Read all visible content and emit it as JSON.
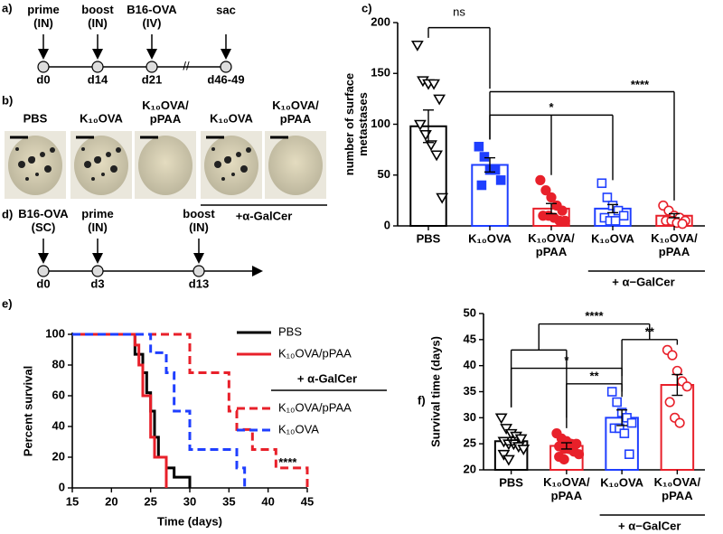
{
  "panels": {
    "a": {
      "label": "a)",
      "events": [
        "prime\n(IN)",
        "boost\n(IN)",
        "B16-OVA\n(IV)",
        "sac"
      ],
      "days": [
        "d0",
        "d14",
        "d21",
        "d46-49"
      ]
    },
    "b": {
      "label": "b)",
      "groups": [
        "PBS",
        "K₁₀OVA",
        "K₁₀OVA/\npPAA",
        "K₁₀OVA",
        "K₁₀OVA/\npPAA"
      ],
      "bracket": "+α-GalCer"
    },
    "d": {
      "label": "d)",
      "events": [
        "B16-OVA\n(SC)",
        "prime\n(IN)",
        "boost\n(IN)"
      ],
      "days": [
        "d0",
        "d3",
        "d13"
      ]
    }
  },
  "chart_data": [
    {
      "type": "bar",
      "label": "c)",
      "ylabel": "number of surface\nmetastases",
      "categories": [
        "PBS",
        "K₁₀OVA",
        "K₁₀OVA/\npPAA",
        "K₁₀OVA",
        "K₁₀OVA/\npPAA"
      ],
      "values": [
        98,
        60,
        17,
        17,
        10
      ],
      "errors": [
        16,
        7,
        5,
        4,
        2
      ],
      "colors": [
        "#000000",
        "#1f3fff",
        "#e8202a",
        "#1f3fff",
        "#e8202a"
      ],
      "markers": [
        "triangle",
        "square",
        "circle",
        "square",
        "circle"
      ],
      "filled": [
        false,
        true,
        true,
        false,
        false
      ],
      "points": [
        [
          178,
          143,
          140,
          140,
          125,
          100,
          90,
          80,
          70,
          28
        ],
        [
          78,
          68,
          55,
          55,
          45,
          40
        ],
        [
          45,
          35,
          28,
          20,
          15,
          10,
          10,
          8,
          5,
          5
        ],
        [
          42,
          28,
          20,
          15,
          10,
          8,
          5,
          5
        ],
        [
          20,
          15,
          10,
          8,
          5,
          5,
          5,
          3,
          2
        ]
      ],
      "ylim": [
        0,
        200
      ],
      "yticks": [
        0,
        50,
        100,
        150,
        200
      ],
      "group_label": "+ α−GalCer",
      "annotations": [
        "ns",
        "****",
        "*"
      ]
    },
    {
      "type": "step",
      "label": "e)",
      "xlabel": "Time (days)",
      "ylabel": "Percent survival",
      "xlim": [
        15,
        45
      ],
      "xticks": [
        15,
        20,
        25,
        30,
        35,
        40,
        45
      ],
      "ylim": [
        0,
        100
      ],
      "yticks": [
        0,
        20,
        40,
        60,
        80,
        100
      ],
      "series": [
        {
          "name": "PBS",
          "color": "#000000",
          "dashed": false,
          "x": [
            15,
            23,
            24,
            24.5,
            25,
            25.5,
            26,
            27,
            28,
            30
          ],
          "values": [
            100,
            87,
            75,
            62,
            50,
            33,
            20,
            13,
            7,
            0
          ]
        },
        {
          "name": "K₁₀OVA/pPAA",
          "color": "#e8202a",
          "dashed": false,
          "x": [
            15,
            23,
            23.5,
            24,
            25,
            25.5,
            27
          ],
          "values": [
            100,
            93,
            80,
            60,
            33,
            20,
            0
          ]
        },
        {
          "name": "K₁₀OVA/pPAA",
          "color": "#e8202a",
          "dashed": true,
          "x": [
            15,
            30,
            35,
            36,
            38,
            41,
            45
          ],
          "values": [
            100,
            75,
            50,
            38,
            25,
            13,
            0
          ]
        },
        {
          "name": "K₁₀OVA",
          "color": "#1f3fff",
          "dashed": true,
          "x": [
            15,
            25,
            27,
            28,
            30,
            36,
            37
          ],
          "values": [
            100,
            88,
            75,
            50,
            25,
            13,
            0
          ]
        }
      ],
      "legend_group": "+ α-GalCer",
      "annotations": [
        "****"
      ]
    },
    {
      "type": "bar",
      "label": "f)",
      "ylabel": "Survival time (days)",
      "categories": [
        "PBS",
        "K₁₀OVA/\npPAA",
        "K₁₀OVA",
        "K₁₀OVA/\npPAA"
      ],
      "values": [
        25.5,
        24.6,
        30,
        36.3
      ],
      "errors": [
        0.7,
        0.6,
        1.5,
        2
      ],
      "colors": [
        "#000000",
        "#e8202a",
        "#1f3fff",
        "#e8202a"
      ],
      "markers": [
        "triangle",
        "circle",
        "square",
        "circle"
      ],
      "filled": [
        false,
        true,
        false,
        false
      ],
      "points": [
        [
          30,
          28,
          27,
          26.5,
          26,
          25.5,
          25,
          25,
          24.5,
          24,
          23,
          22
        ],
        [
          27,
          26,
          25.5,
          25,
          25,
          24.5,
          24,
          24,
          23.5,
          23,
          22.5,
          22
        ],
        [
          35,
          33,
          31,
          30,
          29,
          28,
          28,
          27,
          23
        ],
        [
          43,
          42,
          39,
          37,
          36,
          33,
          30,
          29
        ]
      ],
      "ylim": [
        20,
        50
      ],
      "yticks": [
        20,
        25,
        30,
        35,
        40,
        45,
        50
      ],
      "group_label": "+ α−GalCer",
      "annotations": [
        "****",
        "**",
        "*",
        "**"
      ]
    }
  ]
}
